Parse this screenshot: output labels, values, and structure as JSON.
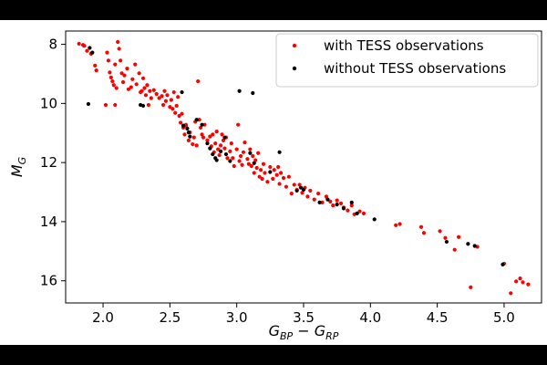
{
  "chart_data": {
    "type": "scatter",
    "xlabel": {
      "base1": "G",
      "sub1": "BP",
      "op": " − ",
      "base2": "G",
      "sub2": "RP"
    },
    "ylabel": {
      "base": "M",
      "sub": "G"
    },
    "xlim": [
      1.72,
      5.28
    ],
    "ylim": [
      16.75,
      7.55
    ],
    "y_inverted": true,
    "grid": false,
    "legend_position": "top-right",
    "x_ticks": [
      2.0,
      2.5,
      3.0,
      3.5,
      4.0,
      4.5,
      5.0
    ],
    "x_tick_labels": [
      "2.0",
      "2.5",
      "3.0",
      "3.5",
      "4.0",
      "4.5",
      "5.0"
    ],
    "y_ticks": [
      8,
      10,
      12,
      14,
      16
    ],
    "y_tick_labels": [
      "8",
      "10",
      "12",
      "14",
      "16"
    ],
    "series": [
      {
        "name": "with TESS observations",
        "color": "#ff0000",
        "points": [
          [
            1.82,
            7.98
          ],
          [
            1.85,
            8.02
          ],
          [
            1.86,
            8.05
          ],
          [
            1.91,
            8.32
          ],
          [
            1.94,
            8.72
          ],
          [
            1.95,
            8.88
          ],
          [
            2.03,
            8.28
          ],
          [
            2.04,
            8.55
          ],
          [
            2.05,
            8.95
          ],
          [
            2.06,
            9.12
          ],
          [
            2.07,
            9.25
          ],
          [
            2.08,
            9.38
          ],
          [
            2.09,
            8.68
          ],
          [
            2.1,
            9.48
          ],
          [
            2.11,
            7.92
          ],
          [
            2.12,
            8.15
          ],
          [
            2.13,
            8.55
          ],
          [
            2.14,
            8.98
          ],
          [
            2.15,
            9.28
          ],
          [
            2.16,
            9.05
          ],
          [
            2.18,
            8.82
          ],
          [
            2.19,
            9.52
          ],
          [
            2.21,
            9.45
          ],
          [
            2.22,
            9.18
          ],
          [
            2.24,
            8.68
          ],
          [
            2.25,
            9.35
          ],
          [
            2.27,
            8.98
          ],
          [
            2.28,
            9.62
          ],
          [
            2.29,
            9.58
          ],
          [
            2.3,
            9.15
          ],
          [
            2.31,
            9.48
          ],
          [
            2.32,
            9.72
          ],
          [
            2.33,
            9.38
          ],
          [
            2.34,
            10.05
          ],
          [
            2.35,
            9.58
          ],
          [
            2.36,
            9.82
          ],
          [
            2.38,
            9.55
          ],
          [
            2.4,
            9.68
          ],
          [
            2.42,
            9.82
          ],
          [
            2.44,
            9.75
          ],
          [
            2.45,
            10.05
          ],
          [
            2.46,
            9.58
          ],
          [
            2.47,
            9.92
          ],
          [
            2.48,
            9.72
          ],
          [
            2.5,
            10.12
          ],
          [
            2.51,
            9.88
          ],
          [
            2.52,
            10.18
          ],
          [
            2.53,
            9.62
          ],
          [
            2.54,
            10.32
          ],
          [
            2.55,
            10.08
          ],
          [
            2.56,
            9.78
          ],
          [
            2.57,
            10.42
          ],
          [
            2.58,
            10.65
          ],
          [
            2.59,
            10.35
          ],
          [
            2.6,
            10.82
          ],
          [
            2.61,
            11.05
          ],
          [
            2.62,
            10.75
          ],
          [
            2.64,
            11.25
          ],
          [
            2.65,
            10.98
          ],
          [
            2.67,
            11.38
          ],
          [
            2.68,
            11.15
          ],
          [
            2.69,
            10.62
          ],
          [
            2.7,
            11.42
          ],
          [
            2.71,
            9.25
          ],
          [
            2.72,
            10.55
          ],
          [
            2.73,
            10.82
          ],
          [
            2.74,
            11.05
          ],
          [
            2.75,
            11.15
          ],
          [
            2.76,
            10.72
          ],
          [
            2.78,
            11.25
          ],
          [
            2.8,
            11.12
          ],
          [
            2.81,
            11.45
          ],
          [
            2.82,
            11.05
          ],
          [
            2.83,
            11.65
          ],
          [
            2.84,
            11.35
          ],
          [
            2.85,
            10.95
          ],
          [
            2.86,
            11.55
          ],
          [
            2.87,
            11.75
          ],
          [
            2.88,
            11.42
          ],
          [
            2.89,
            11.05
          ],
          [
            2.9,
            11.25
          ],
          [
            2.91,
            11.52
          ],
          [
            2.92,
            11.15
          ],
          [
            2.93,
            11.85
          ],
          [
            2.95,
            11.62
          ],
          [
            2.96,
            11.35
          ],
          [
            2.97,
            11.85
          ],
          [
            2.98,
            12.12
          ],
          [
            3.0,
            11.55
          ],
          [
            3.01,
            10.72
          ],
          [
            3.02,
            11.95
          ],
          [
            3.03,
            11.78
          ],
          [
            3.04,
            12.08
          ],
          [
            3.05,
            11.65
          ],
          [
            3.06,
            11.32
          ],
          [
            3.08,
            11.88
          ],
          [
            3.09,
            12.05
          ],
          [
            3.1,
            11.55
          ],
          [
            3.11,
            12.12
          ],
          [
            3.12,
            11.78
          ],
          [
            3.13,
            12.35
          ],
          [
            3.14,
            11.92
          ],
          [
            3.15,
            12.18
          ],
          [
            3.16,
            11.68
          ],
          [
            3.17,
            12.48
          ],
          [
            3.18,
            12.25
          ],
          [
            3.19,
            12.55
          ],
          [
            3.2,
            12.05
          ],
          [
            3.21,
            12.35
          ],
          [
            3.23,
            12.65
          ],
          [
            3.25,
            12.15
          ],
          [
            3.27,
            12.55
          ],
          [
            3.28,
            12.25
          ],
          [
            3.3,
            12.42
          ],
          [
            3.31,
            12.15
          ],
          [
            3.32,
            12.72
          ],
          [
            3.33,
            12.35
          ],
          [
            3.35,
            12.52
          ],
          [
            3.37,
            12.82
          ],
          [
            3.39,
            12.48
          ],
          [
            3.41,
            13.05
          ],
          [
            3.43,
            12.75
          ],
          [
            3.45,
            12.92
          ],
          [
            3.47,
            12.75
          ],
          [
            3.49,
            13.02
          ],
          [
            3.51,
            12.85
          ],
          [
            3.53,
            13.15
          ],
          [
            3.55,
            12.95
          ],
          [
            3.58,
            13.25
          ],
          [
            3.61,
            13.05
          ],
          [
            3.64,
            13.35
          ],
          [
            3.67,
            13.15
          ],
          [
            3.7,
            13.32
          ],
          [
            3.72,
            13.45
          ],
          [
            3.75,
            13.28
          ],
          [
            3.78,
            13.38
          ],
          [
            3.8,
            13.52
          ],
          [
            3.83,
            13.62
          ],
          [
            3.86,
            13.45
          ],
          [
            3.88,
            13.75
          ],
          [
            3.92,
            13.65
          ],
          [
            3.95,
            13.72
          ],
          [
            4.19,
            14.12
          ],
          [
            4.22,
            14.08
          ],
          [
            4.38,
            14.18
          ],
          [
            4.4,
            14.38
          ],
          [
            4.52,
            14.32
          ],
          [
            4.56,
            14.55
          ],
          [
            4.63,
            14.95
          ],
          [
            4.66,
            14.52
          ],
          [
            4.75,
            16.22
          ],
          [
            4.8,
            14.85
          ],
          [
            5.0,
            15.42
          ],
          [
            5.05,
            16.42
          ],
          [
            5.09,
            16.02
          ],
          [
            5.12,
            15.92
          ],
          [
            5.14,
            16.05
          ],
          [
            5.18,
            16.12
          ],
          [
            2.09,
            10.05
          ],
          [
            1.88,
            8.22
          ],
          [
            2.02,
            10.05
          ],
          [
            2.62,
            10.72
          ]
        ]
      },
      {
        "name": "without TESS observations",
        "color": "#000000",
        "points": [
          [
            1.89,
            10.02
          ],
          [
            1.9,
            8.12
          ],
          [
            1.92,
            8.28
          ],
          [
            2.28,
            10.05
          ],
          [
            2.3,
            10.08
          ],
          [
            2.59,
            9.62
          ],
          [
            2.6,
            10.75
          ],
          [
            2.63,
            10.85
          ],
          [
            2.64,
            10.98
          ],
          [
            2.65,
            11.12
          ],
          [
            2.7,
            10.55
          ],
          [
            2.74,
            10.72
          ],
          [
            2.78,
            11.35
          ],
          [
            2.8,
            11.52
          ],
          [
            2.82,
            11.72
          ],
          [
            2.84,
            11.85
          ],
          [
            2.85,
            11.92
          ],
          [
            2.88,
            11.62
          ],
          [
            2.91,
            11.15
          ],
          [
            2.92,
            11.72
          ],
          [
            2.95,
            11.95
          ],
          [
            3.02,
            9.58
          ],
          [
            3.12,
            9.65
          ],
          [
            3.1,
            11.68
          ],
          [
            3.13,
            12.02
          ],
          [
            3.25,
            12.32
          ],
          [
            3.32,
            11.65
          ],
          [
            3.45,
            12.95
          ],
          [
            3.48,
            12.85
          ],
          [
            3.5,
            12.92
          ],
          [
            3.62,
            13.35
          ],
          [
            3.68,
            13.25
          ],
          [
            3.75,
            13.42
          ],
          [
            3.8,
            13.55
          ],
          [
            3.86,
            13.35
          ],
          [
            3.9,
            13.72
          ],
          [
            4.03,
            13.92
          ],
          [
            4.57,
            14.68
          ],
          [
            4.73,
            14.75
          ],
          [
            4.78,
            14.82
          ],
          [
            4.99,
            15.45
          ]
        ]
      }
    ]
  }
}
